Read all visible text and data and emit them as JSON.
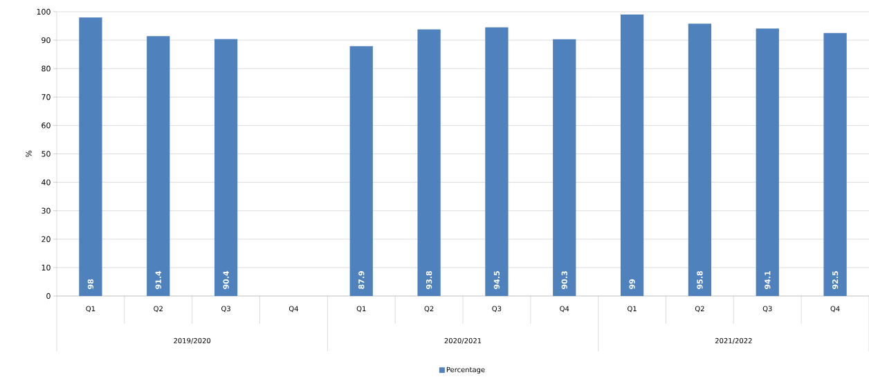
{
  "chart_data": {
    "type": "bar",
    "ylabel": "%",
    "categories": [
      "Q1",
      "Q2",
      "Q3",
      "Q4",
      "Q1",
      "Q2",
      "Q3",
      "Q4",
      "Q1",
      "Q2",
      "Q3",
      "Q4"
    ],
    "annotations": [
      "2019/2020",
      "2020/2021",
      "2021/2022"
    ],
    "series": [
      {
        "name": "Percentage",
        "color": "#4f81bd",
        "values": [
          98,
          91.4,
          90.4,
          null,
          87.9,
          93.8,
          94.5,
          90.3,
          99,
          95.8,
          94.1,
          92.5
        ]
      }
    ],
    "ylim": [
      0,
      100
    ],
    "yticks": [
      0,
      10,
      20,
      30,
      40,
      50,
      60,
      70,
      80,
      90,
      100
    ],
    "grid": "y",
    "legend": "bottom",
    "data_labels": true
  }
}
